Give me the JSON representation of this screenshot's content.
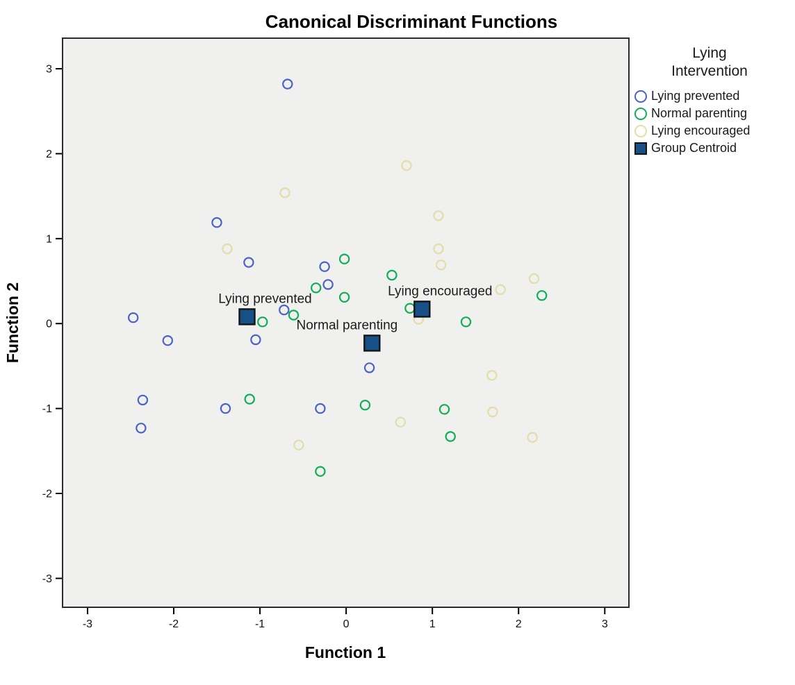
{
  "figure": {
    "title": "Canonical Discriminant Functions"
  },
  "chart_data": {
    "type": "scatter",
    "title": "Canonical Discriminant Functions",
    "xlabel": "Function 1",
    "ylabel": "Function 2",
    "xlim": [
      -3.29,
      3.28
    ],
    "ylim": [
      -3.34,
      3.36
    ],
    "xticks": [
      -3,
      -2,
      -1,
      0,
      1,
      2,
      3
    ],
    "yticks": [
      -3,
      -2,
      -1,
      0,
      1,
      2,
      3
    ],
    "grid": false,
    "plot_background": "#F0F0EE",
    "frame_color": "#2B2B2B",
    "legend_position": "right",
    "series": [
      {
        "name": "Lying prevented",
        "marker": "circle",
        "color": "#4A62C4",
        "points": [
          [
            -0.68,
            2.82
          ],
          [
            -1.5,
            1.19
          ],
          [
            -1.13,
            0.72
          ],
          [
            -0.25,
            0.67
          ],
          [
            -0.21,
            0.46
          ],
          [
            -0.72,
            0.16
          ],
          [
            -2.47,
            0.07
          ],
          [
            -1.05,
            -0.19
          ],
          [
            -2.07,
            -0.2
          ],
          [
            0.27,
            -0.52
          ],
          [
            -2.36,
            -0.9
          ],
          [
            -1.4,
            -1.0
          ],
          [
            -0.3,
            -1.0
          ],
          [
            -2.38,
            -1.23
          ]
        ]
      },
      {
        "name": "Normal parenting",
        "marker": "circle",
        "color": "#0FAE54",
        "points": [
          [
            -0.02,
            0.76
          ],
          [
            0.53,
            0.57
          ],
          [
            -0.35,
            0.42
          ],
          [
            -0.02,
            0.31
          ],
          [
            0.74,
            0.18
          ],
          [
            -0.61,
            0.1
          ],
          [
            -0.97,
            0.02
          ],
          [
            1.39,
            0.02
          ],
          [
            2.27,
            0.33
          ],
          [
            -1.12,
            -0.89
          ],
          [
            0.22,
            -0.96
          ],
          [
            1.14,
            -1.01
          ],
          [
            1.21,
            -1.33
          ],
          [
            -0.3,
            -1.74
          ]
        ]
      },
      {
        "name": "Lying encouraged",
        "marker": "circle",
        "color": "#E2DEA6",
        "points": [
          [
            0.7,
            1.86
          ],
          [
            -0.71,
            1.54
          ],
          [
            1.07,
            1.27
          ],
          [
            -1.38,
            0.88
          ],
          [
            1.07,
            0.88
          ],
          [
            1.1,
            0.69
          ],
          [
            2.18,
            0.53
          ],
          [
            1.79,
            0.4
          ],
          [
            0.84,
            0.05
          ],
          [
            1.69,
            -0.61
          ],
          [
            1.7,
            -1.04
          ],
          [
            0.63,
            -1.16
          ],
          [
            -0.55,
            -1.43
          ],
          [
            2.16,
            -1.34
          ]
        ]
      },
      {
        "name": "Group Centroid",
        "marker": "square",
        "color": "#174F87",
        "points": [
          [
            -1.15,
            0.08
          ],
          [
            0.3,
            -0.23
          ],
          [
            0.88,
            0.17
          ]
        ]
      }
    ],
    "centroid_labels": [
      {
        "text": "Lying prevented",
        "x": -0.94,
        "y": 0.29
      },
      {
        "text": "Normal parenting",
        "x": 0.01,
        "y": -0.02
      },
      {
        "text": "Lying encouraged",
        "x": 1.09,
        "y": 0.38
      }
    ]
  },
  "legend": {
    "title_lines": [
      "Lying",
      "Intervention"
    ],
    "items": [
      {
        "label": "Lying prevented",
        "marker": "circle",
        "color": "#4A62C4"
      },
      {
        "label": "Normal parenting",
        "marker": "circle",
        "color": "#0FAE54"
      },
      {
        "label": "Lying encouraged",
        "marker": "circle",
        "color": "#E2DEA6"
      },
      {
        "label": "Group Centroid",
        "marker": "square",
        "color": "#174F87"
      }
    ]
  }
}
